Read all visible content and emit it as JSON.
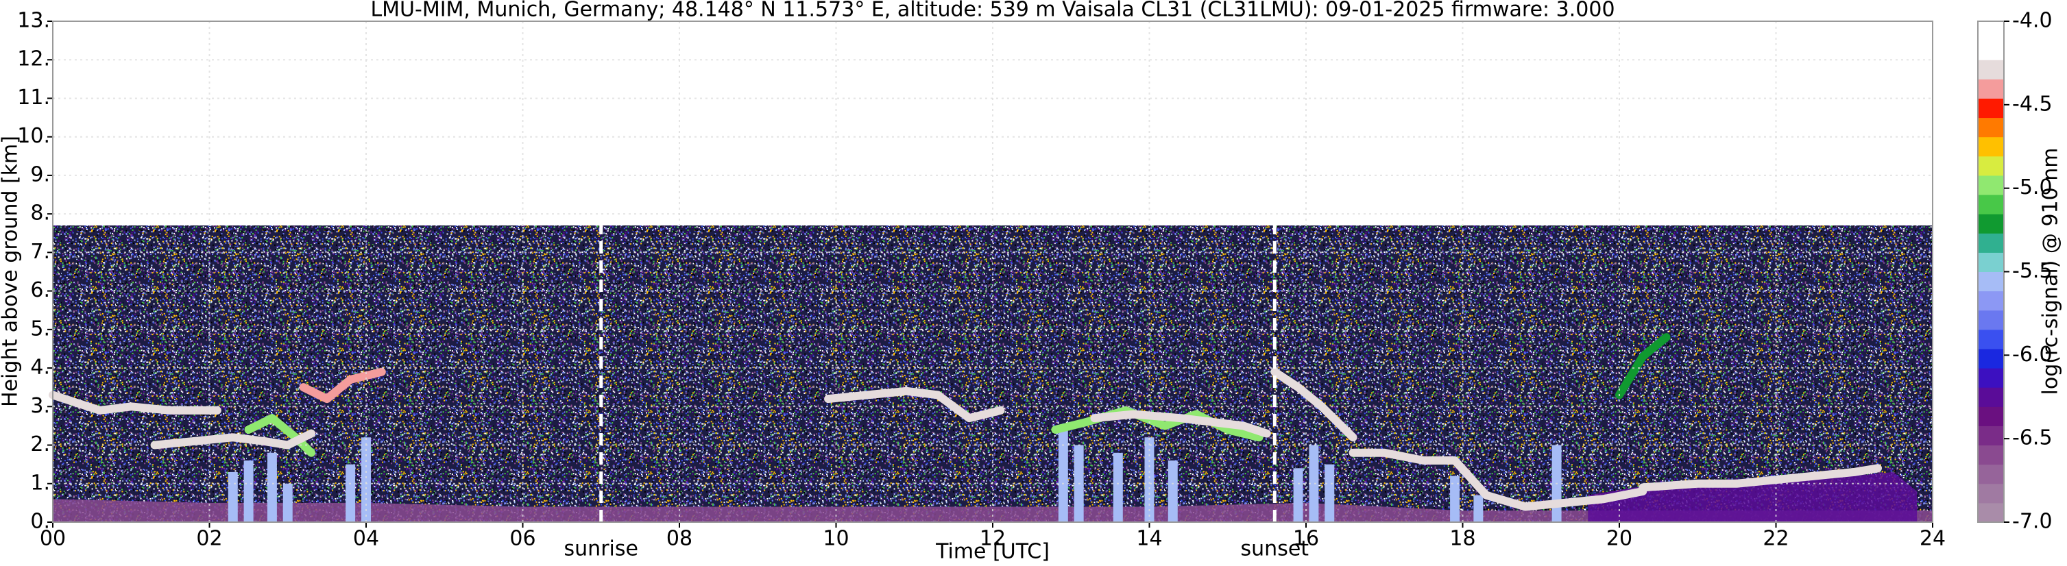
{
  "chart_data": {
    "type": "ceilometer",
    "title": "LMU-MIM, Munich, Germany; 48.148° N 11.573° E, altitude: 539 m    Vaisala CL31 (CL31LMU): 09-01-2025    firmware: 3.000",
    "x_label": "Time [UTC]",
    "y_label": "Height above ground [km]",
    "xlim": [
      0,
      24
    ],
    "xticks": [
      {
        "value": 0,
        "label": "00"
      },
      {
        "value": 2,
        "label": "02"
      },
      {
        "value": 4,
        "label": "04"
      },
      {
        "value": 6,
        "label": "06"
      },
      {
        "value": 8,
        "label": "08"
      },
      {
        "value": 10,
        "label": "10"
      },
      {
        "value": 12,
        "label": "12"
      },
      {
        "value": 14,
        "label": "14"
      },
      {
        "value": 16,
        "label": "16"
      },
      {
        "value": 18,
        "label": "18"
      },
      {
        "value": 20,
        "label": "20"
      },
      {
        "value": 22,
        "label": "22"
      },
      {
        "value": 24,
        "label": "24"
      }
    ],
    "ylim": [
      0,
      13
    ],
    "yticks": [
      {
        "value": 0,
        "label": "0."
      },
      {
        "value": 1,
        "label": "1."
      },
      {
        "value": 2,
        "label": "2."
      },
      {
        "value": 3,
        "label": "3."
      },
      {
        "value": 4,
        "label": "4."
      },
      {
        "value": 5,
        "label": "5."
      },
      {
        "value": 6,
        "label": "6."
      },
      {
        "value": 7,
        "label": "7."
      },
      {
        "value": 8,
        "label": "8."
      },
      {
        "value": 9,
        "label": "9."
      },
      {
        "value": 10,
        "label": "10."
      },
      {
        "value": 11,
        "label": "11."
      },
      {
        "value": 12,
        "label": "12."
      },
      {
        "value": 13,
        "label": "13."
      }
    ],
    "grid": true,
    "noise_top": 7.7,
    "events": [
      {
        "x": 7.0,
        "label": "sunrise"
      },
      {
        "x": 15.6,
        "label": "sunset"
      }
    ],
    "colorbar": {
      "label": "log(rc-signal) @ 910 nm",
      "lim": [
        -7,
        -4
      ],
      "ticks": [
        {
          "value": -7,
          "label": "-7.0"
        },
        {
          "value": -6.5,
          "label": "-6.5"
        },
        {
          "value": -6,
          "label": "-6.0"
        },
        {
          "value": -5.5,
          "label": "-5.5"
        },
        {
          "value": -5,
          "label": "-5.0"
        },
        {
          "value": -4.5,
          "label": "-4.5"
        },
        {
          "value": -4,
          "label": "-4.0"
        }
      ],
      "colors": [
        "#a98ca9",
        "#a07aa2",
        "#96649a",
        "#8a4a90",
        "#7a2c88",
        "#6a1080",
        "#5a0c98",
        "#3c10c0",
        "#1a28e0",
        "#3a50f0",
        "#6a78f0",
        "#8c98f4",
        "#a6bcf6",
        "#7ad0d0",
        "#30b090",
        "#109a30",
        "#48c848",
        "#90e870",
        "#d8ec40",
        "#ffc000",
        "#ff7a00",
        "#ff1a00",
        "#f49c9c",
        "#e6dcdc",
        "#ffffff",
        "#ffffff"
      ]
    },
    "series": [
      {
        "style": "area",
        "level": -6.6,
        "x": [
          0,
          2,
          4,
          6,
          8,
          10,
          12,
          14,
          16,
          18,
          20,
          22,
          24
        ],
        "values": [
          0.6,
          0.5,
          0.5,
          0.4,
          0.4,
          0.4,
          0.4,
          0.4,
          0.5,
          0.3,
          0.3,
          0.3,
          0.3
        ]
      },
      {
        "style": "area",
        "level": -6.3,
        "x": [
          19.6,
          20.5,
          21.5,
          22.5,
          23.5,
          23.8
        ],
        "values": [
          0.7,
          1.0,
          1.0,
          1.1,
          1.3,
          0.8
        ]
      },
      {
        "style": "column",
        "level": -5.6,
        "x": [
          2.3,
          2.5,
          2.8,
          3.0,
          3.8,
          4.0,
          12.9,
          13.1,
          13.6,
          14.0,
          14.3,
          15.9,
          16.1,
          16.3,
          17.9,
          18.2,
          19.2
        ],
        "values": [
          1.3,
          1.6,
          1.8,
          1.0,
          1.5,
          2.2,
          2.5,
          2.0,
          1.8,
          2.2,
          1.6,
          1.4,
          2.0,
          1.5,
          1.2,
          0.7,
          2.0
        ]
      },
      {
        "style": "line",
        "level": -5.0,
        "x": [
          2.5,
          2.8,
          3.1,
          3.3
        ],
        "values": [
          2.4,
          2.7,
          2.2,
          1.8
        ]
      },
      {
        "style": "line",
        "level": -5.0,
        "x": [
          12.8,
          13.2,
          13.7,
          14.2,
          14.6,
          15.0,
          15.4
        ],
        "values": [
          2.4,
          2.6,
          2.9,
          2.5,
          2.8,
          2.4,
          2.2
        ]
      },
      {
        "style": "line",
        "level": -5.2,
        "x": [
          20.0,
          20.3,
          20.6
        ],
        "values": [
          3.3,
          4.3,
          4.8
        ]
      },
      {
        "style": "line",
        "level": -4.3,
        "x": [
          0,
          0.3,
          0.6,
          1.0,
          1.5,
          2.1
        ],
        "values": [
          3.3,
          3.1,
          2.9,
          3.0,
          2.9,
          2.9
        ]
      },
      {
        "style": "line",
        "level": -4.3,
        "x": [
          1.3,
          1.8,
          2.3,
          2.7,
          3.0,
          3.3
        ],
        "values": [
          2.0,
          2.1,
          2.2,
          2.1,
          2.0,
          2.3
        ]
      },
      {
        "style": "line",
        "level": -4.4,
        "x": [
          3.2,
          3.5,
          3.8,
          4.2
        ],
        "values": [
          3.5,
          3.2,
          3.7,
          3.9
        ]
      },
      {
        "style": "line",
        "level": -4.3,
        "x": [
          9.9,
          10.4,
          10.9,
          11.3,
          11.7,
          12.1
        ],
        "values": [
          3.2,
          3.3,
          3.4,
          3.3,
          2.7,
          2.9
        ]
      },
      {
        "style": "line",
        "level": -4.3,
        "x": [
          13.3,
          13.8,
          14.4,
          14.8,
          15.2,
          15.5
        ],
        "values": [
          2.7,
          2.8,
          2.7,
          2.6,
          2.5,
          2.3
        ]
      },
      {
        "style": "line",
        "level": -4.3,
        "x": [
          15.6,
          15.9,
          16.2,
          16.6
        ],
        "values": [
          3.9,
          3.5,
          3.0,
          2.2
        ]
      },
      {
        "style": "line",
        "level": -4.3,
        "x": [
          16.6,
          17,
          17.5,
          17.9,
          18.3,
          18.8,
          19.3,
          19.8,
          20.3
        ],
        "values": [
          1.8,
          1.8,
          1.6,
          1.6,
          0.7,
          0.4,
          0.5,
          0.6,
          0.8
        ]
      },
      {
        "style": "line",
        "level": -4.3,
        "x": [
          20.3,
          21,
          21.5,
          22,
          22.5,
          23,
          23.3
        ],
        "values": [
          0.9,
          1.0,
          1.0,
          1.1,
          1.2,
          1.3,
          1.4
        ]
      }
    ]
  }
}
